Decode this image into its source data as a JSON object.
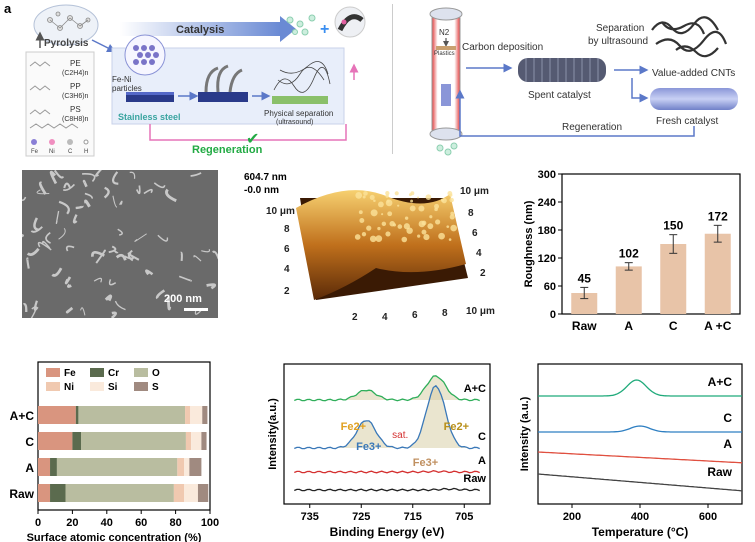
{
  "colors": {
    "pink_arrow": "#e673b8",
    "blue_arrow": "#5b78c8",
    "regen_green": "#22aa44",
    "bar_fill": "#e8c4a8",
    "fe_color": "#d9957f",
    "cr_color": "#5b6b4e",
    "o_color": "#b9bda0",
    "ni_color": "#f0c9b0",
    "si_color": "#faeadc",
    "s_color": "#a08a80",
    "xps_green": "#2fae5a",
    "xps_blue": "#3a78b8",
    "xps_red": "#d43030",
    "xps_black": "#222222",
    "tpo_green": "#1faa7a",
    "tpo_blue": "#2e7fc2",
    "tpo_red": "#e05040",
    "tpo_gray": "#444444"
  },
  "panel_a": {
    "letter": "a",
    "pyrolysis_label": "Pyrolysis",
    "polymers": [
      {
        "name": "PE",
        "formula": "(C2H4)n"
      },
      {
        "name": "PP",
        "formula": "(C3H6)n"
      },
      {
        "name": "PS",
        "formula": "(C8H8)n"
      }
    ],
    "legend": [
      "Fe",
      "Ni",
      "C",
      "H"
    ],
    "catalysis_label": "Catalysis",
    "particles_label": "Fe-Ni\nparticles",
    "stainless_label": "Stainless steel",
    "separation_label": "Physical separation",
    "separation_sub": "(ultrasound)",
    "regeneration_label": "Regeneration"
  },
  "panel_b": {
    "n2_label": "N2",
    "plastics_label": "Plastics",
    "carbon_dep_label": "Carbon deposition",
    "spent_label": "Spent catalyst",
    "separation_label": "Separation",
    "by_ultrasound_label": "by ultrasound",
    "cnts_label": "Value-added CNTs",
    "fresh_label": "Fresh catalyst",
    "regeneration_label": "Regeneration"
  },
  "panel_c": {
    "scale_label": "200 nm"
  },
  "panel_d": {
    "max_label": "604.7 nm",
    "min_label": "-0.0 nm",
    "axis_ticks_left": [
      "10 μm",
      "8",
      "6",
      "4",
      "2"
    ],
    "axis_ticks_right": [
      "10 μm",
      "8",
      "6",
      "4",
      "2"
    ],
    "axis_ticks_bottom": [
      "2",
      "4",
      "6",
      "8",
      "10 μm"
    ]
  },
  "chart_data": [
    {
      "type": "bar",
      "id": "roughness",
      "categories": [
        "Raw",
        "A",
        "C",
        "A +C"
      ],
      "values": [
        45,
        102,
        150,
        172
      ],
      "errors": [
        12,
        8,
        20,
        18
      ],
      "data_labels": [
        "45",
        "102",
        "150",
        "172"
      ],
      "ylabel": "Roughness (nm)",
      "ylim": [
        0,
        300
      ],
      "yticks": [
        0,
        60,
        120,
        180,
        240,
        300
      ]
    },
    {
      "type": "bar",
      "id": "surface-concentration",
      "orientation": "horizontal-stacked",
      "categories": [
        "A+C",
        "C",
        "A",
        "Raw"
      ],
      "series": [
        {
          "name": "Fe",
          "values": [
            22,
            20,
            7,
            7
          ]
        },
        {
          "name": "Cr",
          "values": [
            1.5,
            5,
            4,
            9
          ]
        },
        {
          "name": "O",
          "values": [
            62,
            61,
            70,
            63
          ]
        },
        {
          "name": "Ni",
          "values": [
            3,
            3,
            4,
            6
          ]
        },
        {
          "name": "Si",
          "values": [
            7,
            6,
            3,
            8
          ]
        },
        {
          "name": "S",
          "values": [
            3,
            3,
            7,
            6
          ]
        }
      ],
      "xlabel": "Surface atomic concentration (%)",
      "xlim": [
        0,
        100
      ],
      "xticks": [
        0,
        20,
        40,
        60,
        80,
        100
      ]
    },
    {
      "type": "line",
      "id": "xps-fe2p",
      "xlabel": "Binding Energy (eV)",
      "ylabel": "Intensity(a.u.)",
      "xlim": [
        740,
        700
      ],
      "xticks": [
        735,
        725,
        715,
        705
      ],
      "series": [
        {
          "name": "A+C",
          "peaks": [
            [
              724,
              0.25
            ],
            [
              710.5,
              0.6
            ]
          ]
        },
        {
          "name": "C",
          "peaks": [
            [
              724,
              0.45
            ],
            [
              710.5,
              1.0
            ]
          ]
        },
        {
          "name": "A",
          "peaks": [
            [
              710.5,
              0.05
            ]
          ]
        },
        {
          "name": "Raw",
          "peaks": [
            [
              708,
              0.08
            ]
          ]
        }
      ],
      "annotations": [
        "Fe2+",
        "sat.",
        "Fe3+",
        "Fe2+",
        "Fe3+"
      ]
    },
    {
      "type": "line",
      "id": "tpo",
      "xlabel": "Temperature (°C)",
      "ylabel": "Intensity (a.u.)",
      "xlim": [
        100,
        700
      ],
      "xticks": [
        200,
        400,
        600
      ],
      "series": [
        {
          "name": "A+C",
          "peak_x": 390
        },
        {
          "name": "C",
          "peak_x": 400
        },
        {
          "name": "A",
          "peak_x": null
        },
        {
          "name": "Raw",
          "peak_x": null
        }
      ]
    }
  ]
}
